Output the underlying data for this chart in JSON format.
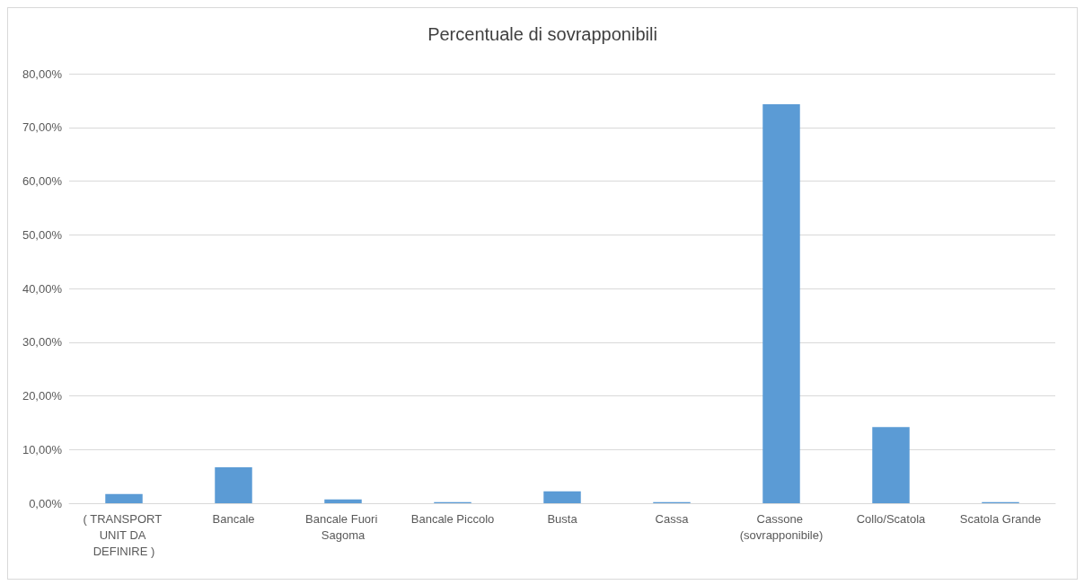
{
  "chart_data": {
    "type": "bar",
    "title": "Percentuale di sovrapponibili",
    "categories": [
      "( TRANSPORT UNIT DA DEFINIRE )",
      "Bancale",
      "Bancale Fuori Sagoma",
      "Bancale Piccolo",
      "Busta",
      "Cassa",
      "Cassone (sovrapponibile)",
      "Collo/Scatola",
      "Scatola Grande"
    ],
    "values": [
      1.7,
      6.7,
      0.7,
      0.2,
      2.2,
      0.2,
      74.3,
      14.2,
      0.2
    ],
    "color": "#5b9bd5",
    "ylim": [
      0,
      80
    ],
    "yticks": [
      {
        "value": 0,
        "label": "0,00%"
      },
      {
        "value": 10,
        "label": "10,00%"
      },
      {
        "value": 20,
        "label": "20,00%"
      },
      {
        "value": 30,
        "label": "30,00%"
      },
      {
        "value": 40,
        "label": "40,00%"
      },
      {
        "value": 50,
        "label": "50,00%"
      },
      {
        "value": 60,
        "label": "60,00%"
      },
      {
        "value": 70,
        "label": "70,00%"
      },
      {
        "value": 80,
        "label": "80,00%"
      }
    ],
    "grid": "y"
  }
}
